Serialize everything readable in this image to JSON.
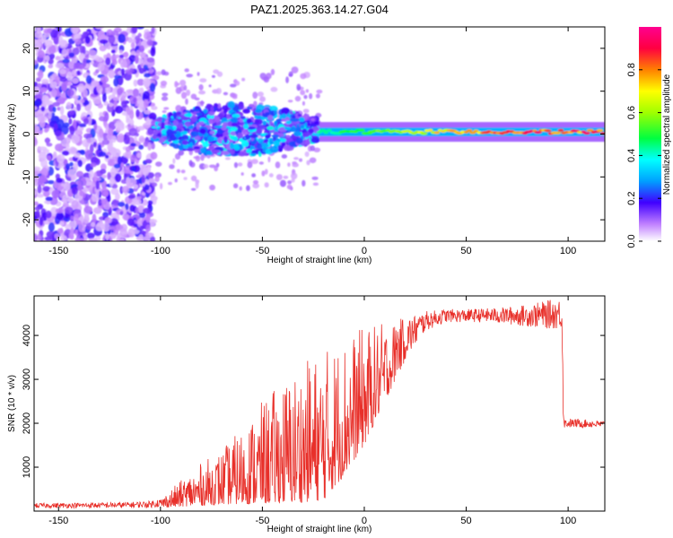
{
  "title": "PAZ1.2025.363.14.27.G04",
  "chart_data": [
    {
      "type": "heatmap",
      "name": "spectrogram",
      "xlabel": "Height of straight line (km)",
      "ylabel": "Frequency (Hz)",
      "xlim": [
        -162,
        118
      ],
      "ylim": [
        -25,
        25
      ],
      "xticks": [
        -150,
        -100,
        -50,
        0,
        50,
        100
      ],
      "yticks": [
        -20,
        -10,
        0,
        10,
        20
      ],
      "colorbar": {
        "label": "Normalized spectral amplitude",
        "range": [
          0,
          1
        ],
        "ticks": [
          0.0,
          0.2,
          0.4,
          0.6,
          0.8
        ],
        "tick_labels": [
          "0.0",
          "0.2",
          "0.4",
          "0.6",
          "0.8"
        ]
      },
      "regions": [
        {
          "x_range": [
            -162,
            -103
          ],
          "description_value": "scattered low amplitude noise over full frequency range"
        },
        {
          "x_range": [
            -103,
            -22
          ],
          "center_hz": 1,
          "spread_hz": 6,
          "amplitude_range": [
            0.1,
            0.4
          ]
        },
        {
          "x_range": [
            -22,
            118
          ],
          "center_hz": 0.5,
          "spread_hz": 1,
          "amplitude_range": [
            0.3,
            0.95
          ]
        }
      ]
    },
    {
      "type": "line",
      "name": "snr",
      "xlabel": "Height of straight line (km)",
      "ylabel": "SNR (10 * v/v)",
      "xlim": [
        -162,
        118
      ],
      "ylim": [
        0,
        4900
      ],
      "xticks": [
        -150,
        -100,
        -50,
        0,
        50,
        100
      ],
      "yticks": [
        1000,
        2000,
        3000,
        4000
      ],
      "series": [
        {
          "name": "SNR",
          "color": "#e8302a",
          "envelope": {
            "x": [
              -162,
              -140,
              -120,
              -105,
              -100,
              -90,
              -80,
              -70,
              -60,
              -50,
              -40,
              -30,
              -20,
              -10,
              0,
              10,
              20,
              30,
              40,
              50,
              60,
              70,
              80,
              90,
              97,
              98,
              105,
              118
            ],
            "low": [
              70,
              70,
              70,
              80,
              90,
              100,
              130,
              150,
              160,
              170,
              180,
              200,
              250,
              800,
              1500,
              2500,
              3400,
              4100,
              4300,
              4300,
              4300,
              4250,
              4200,
              4150,
              4150,
              1900,
              1900,
              1900
            ],
            "high": [
              180,
              190,
              200,
              230,
              300,
              700,
              1100,
              1400,
              1900,
              2500,
              3000,
              3400,
              3700,
              4000,
              4200,
              4300,
              4400,
              4550,
              4600,
              4600,
              4620,
              4650,
              4700,
              4800,
              4850,
              2100,
              2100,
              2050
            ]
          }
        }
      ]
    }
  ]
}
